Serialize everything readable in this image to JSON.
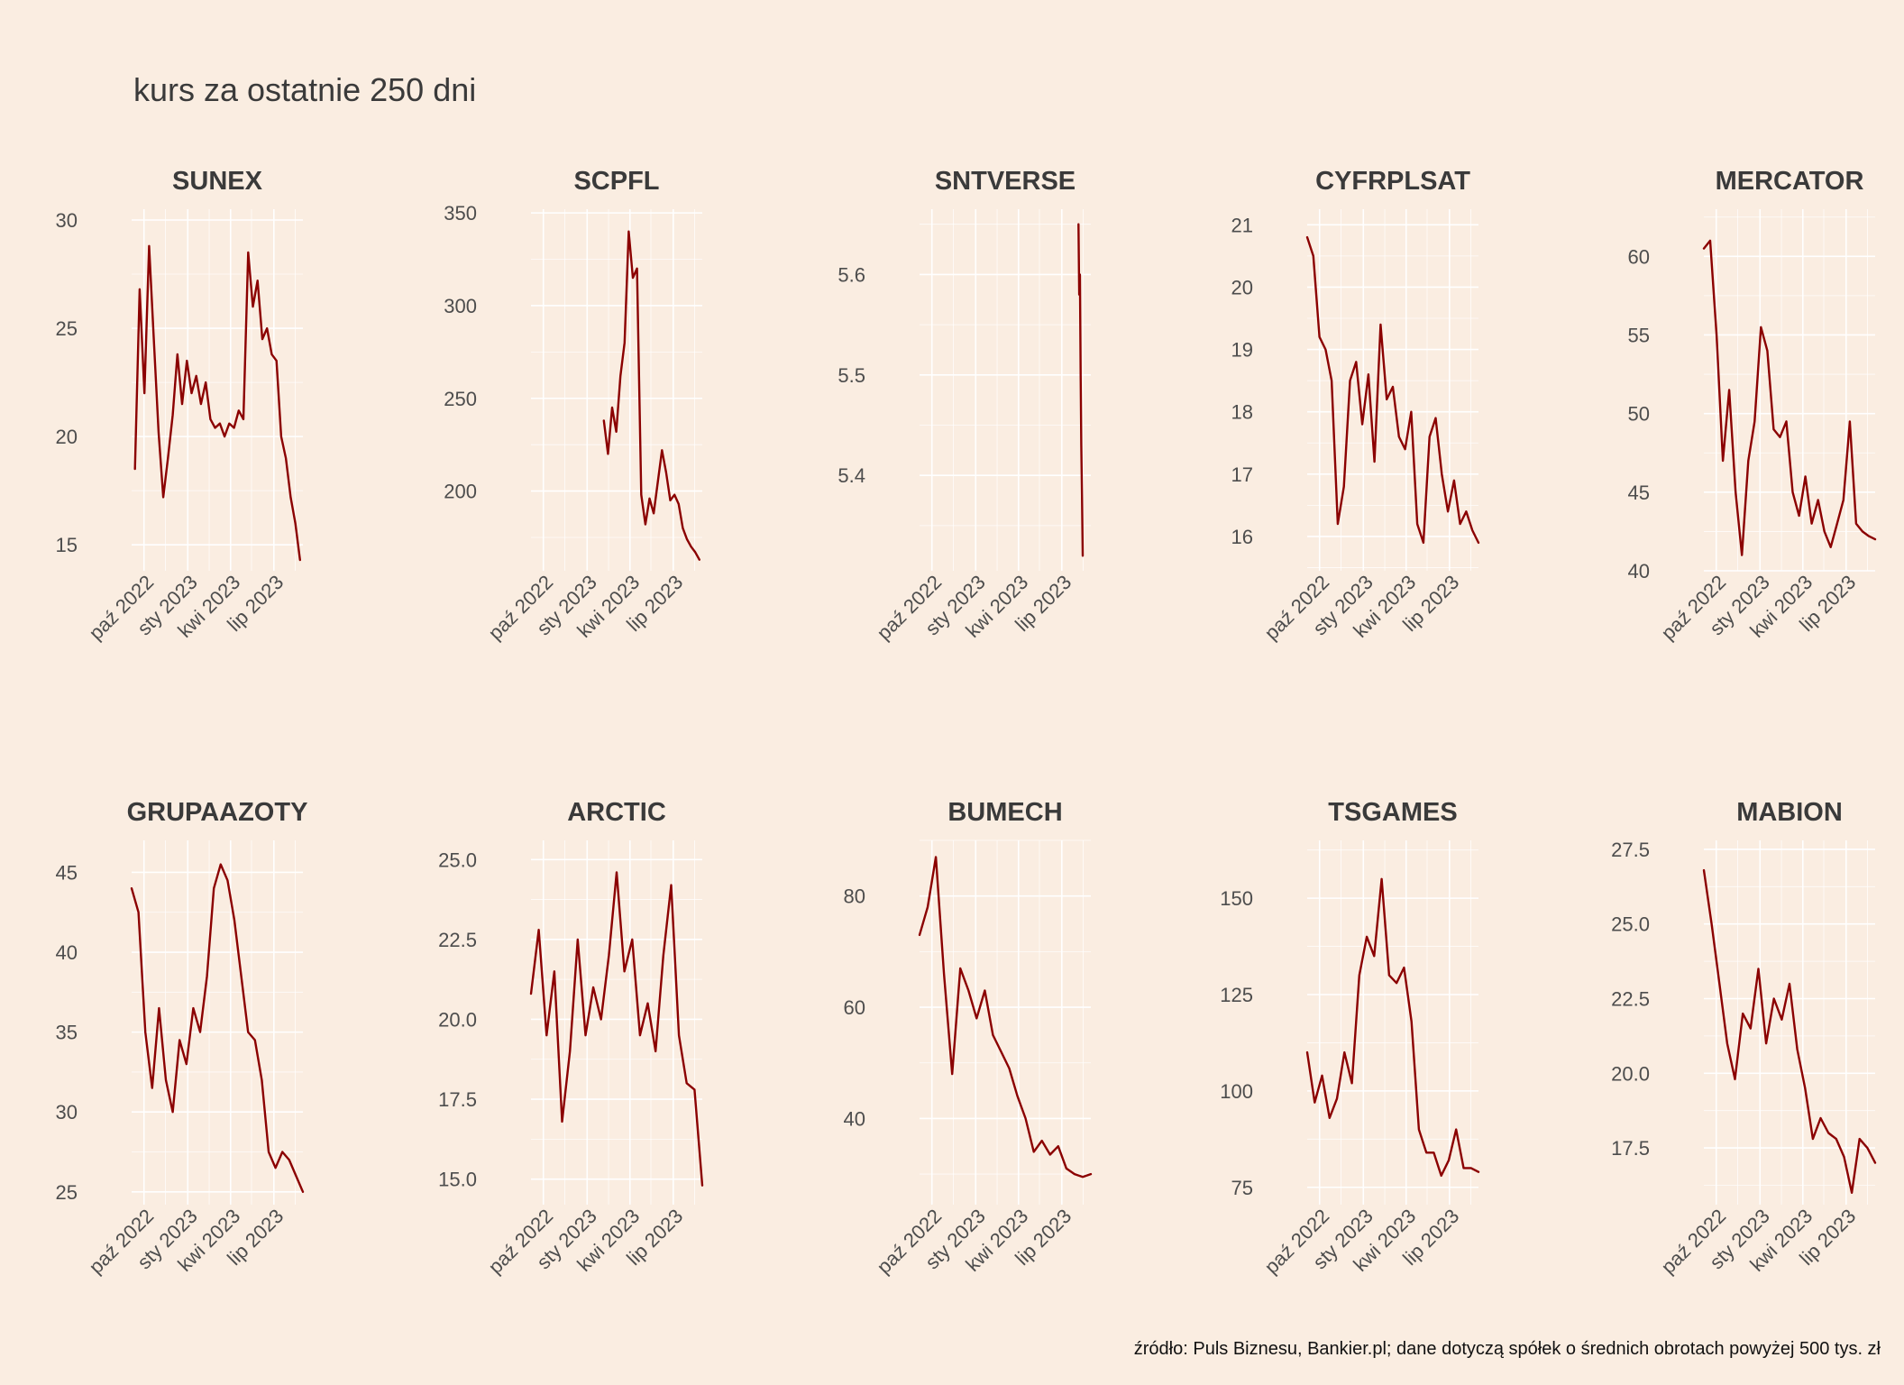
{
  "title": "kurs za ostatnie 250 dni",
  "caption": "źródło: Puls Biznesu, Bankier.pl; dane dotyczą spółek o średnich obrotach powyżej 500 tys. zł",
  "colors": {
    "background": "#FAEDE1",
    "line": "#8B0000",
    "grid": "#FFFFFF"
  },
  "chart_data": [
    {
      "type": "line",
      "title": "SUNEX",
      "x_range": [
        "2022-09-05",
        "2023-08-31"
      ],
      "ylim": [
        13.8,
        30.5
      ],
      "x_tick_labels": [
        "paź 2022",
        "sty 2023",
        "kwi 2023",
        "lip 2023"
      ],
      "y_ticks": [
        15,
        20,
        25,
        30
      ],
      "y_tick_labels": [
        "15",
        "20",
        "25",
        "30"
      ],
      "series": [
        {
          "x_start": "2022-09-12",
          "x_end": "2023-08-25",
          "values": [
            18.5,
            26.8,
            22.0,
            28.8,
            24.5,
            20.2,
            17.2,
            19.0,
            21.0,
            23.8,
            21.5,
            23.5,
            22.0,
            22.8,
            21.5,
            22.5,
            20.8,
            20.4,
            20.6,
            20.0,
            20.6,
            20.4,
            21.2,
            20.8,
            28.5,
            26.0,
            27.2,
            24.5,
            25.0,
            23.8,
            23.5,
            20.0,
            19.0,
            17.2,
            16.0,
            14.3
          ]
        }
      ]
    },
    {
      "type": "line",
      "title": "SCPFL",
      "x_range": [
        "2022-09-05",
        "2023-08-31"
      ],
      "ylim": [
        157,
        352
      ],
      "x_tick_labels": [
        "paź 2022",
        "sty 2023",
        "kwi 2023",
        "lip 2023"
      ],
      "y_ticks": [
        200,
        250,
        300,
        350
      ],
      "y_tick_labels": [
        "200",
        "250",
        "300",
        "350"
      ],
      "series": [
        {
          "x_start": "2023-02-05",
          "x_end": "2023-08-25",
          "values": [
            238,
            220,
            245,
            232,
            262,
            280,
            340,
            315,
            320,
            198,
            182,
            196,
            188,
            205,
            222,
            210,
            195,
            198,
            193,
            180,
            174,
            170,
            167,
            163
          ]
        }
      ]
    },
    {
      "type": "line",
      "title": "SNTVERSE",
      "x_range": [
        "2022-09-05",
        "2023-08-31"
      ],
      "ylim": [
        5.305,
        5.665
      ],
      "x_tick_labels": [
        "paź 2022",
        "sty 2023",
        "kwi 2023",
        "lip 2023"
      ],
      "y_ticks": [
        5.4,
        5.5,
        5.6
      ],
      "y_tick_labels": [
        "5.4",
        "5.5",
        "5.6"
      ],
      "series": [
        {
          "x_start": "2023-08-05",
          "x_end": "2023-08-14",
          "values": [
            5.65,
            5.58,
            5.6,
            5.5,
            5.43,
            5.38,
            5.32
          ]
        }
      ]
    },
    {
      "type": "line",
      "title": "CYFRPLSAT",
      "x_range": [
        "2022-09-05",
        "2023-08-31"
      ],
      "ylim": [
        15.45,
        21.25
      ],
      "x_tick_labels": [
        "paź 2022",
        "sty 2023",
        "kwi 2023",
        "lip 2023"
      ],
      "y_ticks": [
        16,
        17,
        18,
        19,
        20,
        21
      ],
      "y_tick_labels": [
        "16",
        "17",
        "18",
        "19",
        "20",
        "21"
      ],
      "series": [
        {
          "x_start": "2022-09-05",
          "x_end": "2023-08-31",
          "values": [
            20.8,
            20.5,
            19.2,
            19.0,
            18.5,
            16.2,
            16.8,
            18.5,
            18.8,
            17.8,
            18.6,
            17.2,
            19.4,
            18.2,
            18.4,
            17.6,
            17.4,
            18.0,
            16.2,
            15.9,
            17.6,
            17.9,
            17.0,
            16.4,
            16.9,
            16.2,
            16.4,
            16.1,
            15.9
          ]
        }
      ]
    },
    {
      "type": "line",
      "title": "MERCATOR",
      "x_range": [
        "2022-09-05",
        "2023-08-31"
      ],
      "ylim": [
        40,
        63
      ],
      "x_tick_labels": [
        "paź 2022",
        "sty 2023",
        "kwi 2023",
        "lip 2023"
      ],
      "y_ticks": [
        40,
        45,
        50,
        55,
        60
      ],
      "y_tick_labels": [
        "40",
        "45",
        "50",
        "55",
        "60"
      ],
      "series": [
        {
          "x_start": "2022-09-05",
          "x_end": "2023-08-31",
          "values": [
            60.5,
            61.0,
            55.0,
            47.0,
            51.5,
            45.0,
            41.0,
            47.0,
            49.5,
            55.5,
            54.0,
            49.0,
            48.5,
            49.5,
            45.0,
            43.5,
            46.0,
            43.0,
            44.5,
            42.5,
            41.5,
            43.0,
            44.5,
            49.5,
            43.0,
            42.5,
            42.2,
            42.0
          ]
        }
      ]
    },
    {
      "type": "line",
      "title": "GRUPAAZOTY",
      "x_range": [
        "2022-09-05",
        "2023-08-31"
      ],
      "ylim": [
        24.2,
        47.0
      ],
      "x_tick_labels": [
        "paź 2022",
        "sty 2023",
        "kwi 2023",
        "lip 2023"
      ],
      "y_ticks": [
        25,
        30,
        35,
        40,
        45
      ],
      "y_tick_labels": [
        "25",
        "30",
        "35",
        "40",
        "45"
      ],
      "series": [
        {
          "x_start": "2022-09-05",
          "x_end": "2023-08-31",
          "values": [
            44.0,
            42.5,
            35.0,
            31.5,
            36.5,
            32.0,
            30.0,
            34.5,
            33.0,
            36.5,
            35.0,
            38.5,
            44.0,
            45.5,
            44.5,
            42.0,
            38.5,
            35.0,
            34.5,
            32.0,
            27.5,
            26.5,
            27.5,
            27.0,
            26.0,
            25.0
          ]
        }
      ]
    },
    {
      "type": "line",
      "title": "ARCTIC",
      "x_range": [
        "2022-09-05",
        "2023-08-31"
      ],
      "ylim": [
        14.2,
        25.6
      ],
      "x_tick_labels": [
        "paź 2022",
        "sty 2023",
        "kwi 2023",
        "lip 2023"
      ],
      "y_ticks": [
        15.0,
        17.5,
        20.0,
        22.5,
        25.0
      ],
      "y_tick_labels": [
        "15.0",
        "17.5",
        "20.0",
        "22.5",
        "25.0"
      ],
      "series": [
        {
          "x_start": "2022-09-05",
          "x_end": "2023-08-31",
          "values": [
            20.8,
            22.8,
            19.5,
            21.5,
            16.8,
            19.0,
            22.5,
            19.5,
            21.0,
            20.0,
            22.0,
            24.6,
            21.5,
            22.5,
            19.5,
            20.5,
            19.0,
            22.0,
            24.2,
            19.5,
            18.0,
            17.8,
            14.8
          ]
        }
      ]
    },
    {
      "type": "line",
      "title": "BUMECH",
      "x_range": [
        "2022-09-05",
        "2023-08-31"
      ],
      "ylim": [
        24.5,
        90.0
      ],
      "x_tick_labels": [
        "paź 2022",
        "sty 2023",
        "kwi 2023",
        "lip 2023"
      ],
      "y_ticks": [
        40,
        60,
        80
      ],
      "y_tick_labels": [
        "40",
        "60",
        "80"
      ],
      "series": [
        {
          "x_start": "2022-09-05",
          "x_end": "2023-08-31",
          "values": [
            73.0,
            78.0,
            87.0,
            66.0,
            48.0,
            67.0,
            63.0,
            58.0,
            63.0,
            55.0,
            52.0,
            49.0,
            44.0,
            40.0,
            34.0,
            36.0,
            33.5,
            35.0,
            31.0,
            30.0,
            29.5,
            30.0
          ]
        }
      ]
    },
    {
      "type": "line",
      "title": "TSGAMES",
      "x_range": [
        "2022-09-05",
        "2023-08-31"
      ],
      "ylim": [
        70.5,
        165.0
      ],
      "x_tick_labels": [
        "paź 2022",
        "sty 2023",
        "kwi 2023",
        "lip 2023"
      ],
      "y_ticks": [
        75,
        100,
        125,
        150
      ],
      "y_tick_labels": [
        "75",
        "100",
        "125",
        "150"
      ],
      "series": [
        {
          "x_start": "2022-09-05",
          "x_end": "2023-08-31",
          "values": [
            110.0,
            97.0,
            104.0,
            93.0,
            98.0,
            110.0,
            102.0,
            130.0,
            140.0,
            135.0,
            155.0,
            130.0,
            128.0,
            132.0,
            118.0,
            90.0,
            84.0,
            84.0,
            78.0,
            82.0,
            90.0,
            80.0,
            80.0,
            79.0
          ]
        }
      ]
    },
    {
      "type": "line",
      "title": "MABION",
      "x_range": [
        "2022-09-05",
        "2023-08-31"
      ],
      "ylim": [
        15.6,
        27.8
      ],
      "x_tick_labels": [
        "paź 2022",
        "sty 2023",
        "kwi 2023",
        "lip 2023"
      ],
      "y_ticks": [
        17.5,
        20.0,
        22.5,
        25.0,
        27.5
      ],
      "y_tick_labels": [
        "17.5",
        "20.0",
        "22.5",
        "25.0",
        "27.5"
      ],
      "series": [
        {
          "x_start": "2022-09-05",
          "x_end": "2023-08-31",
          "values": [
            26.8,
            25.0,
            23.0,
            21.0,
            19.8,
            22.0,
            21.5,
            23.5,
            21.0,
            22.5,
            21.8,
            23.0,
            20.8,
            19.5,
            17.8,
            18.5,
            18.0,
            17.8,
            17.2,
            16.0,
            17.8,
            17.5,
            17.0
          ]
        }
      ]
    }
  ]
}
